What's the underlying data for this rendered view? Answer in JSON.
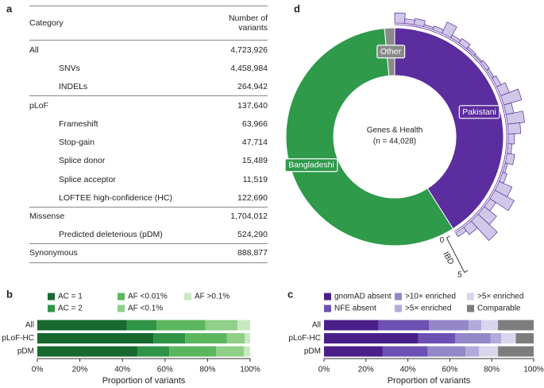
{
  "panel_labels": [
    "a",
    "b",
    "c",
    "d"
  ],
  "table": {
    "header": [
      "Category",
      "Number of variants"
    ],
    "rows": [
      [
        "All",
        "4,723,926"
      ],
      [
        "SNVs",
        "4,458,984"
      ],
      [
        "INDELs",
        "264,942"
      ],
      [
        "pLoF",
        "137,640"
      ],
      [
        "Frameshift",
        "63,966"
      ],
      [
        "Stop-gain",
        "47,714"
      ],
      [
        "Splice donor",
        "15,489"
      ],
      [
        "Splice acceptor",
        "11,519"
      ],
      [
        "LOFTEE high-confidence (HC)",
        "122,690"
      ],
      [
        "Missense",
        "1,704,012"
      ],
      [
        "Predicted deleterious (pDM)",
        "524,290"
      ],
      [
        "Synonymous",
        "888,877"
      ]
    ]
  },
  "chart_data": [
    {
      "type": "bar",
      "orientation": "horizontal",
      "stacked": true,
      "categories": [
        "All",
        "pLoF-HC",
        "pDM"
      ],
      "series": [
        {
          "name": "AC = 1",
          "color": "#17692f",
          "values": [
            42,
            54.5,
            47
          ]
        },
        {
          "name": "AC = 2",
          "color": "#2f9446",
          "values": [
            14,
            15,
            15
          ]
        },
        {
          "name": "AF <0.01%",
          "color": "#5cb65e",
          "values": [
            23,
            19.5,
            22
          ]
        },
        {
          "name": "AF <0.1%",
          "color": "#8fcf88",
          "values": [
            15,
            8.5,
            13
          ]
        },
        {
          "name": "AF >0.1%",
          "color": "#c9e9c1",
          "values": [
            6,
            2.5,
            3
          ]
        }
      ],
      "xlabel": "Proportion of variants",
      "xlim": [
        0,
        100
      ],
      "xticks": [
        {
          "value": 0,
          "label": "0%"
        },
        {
          "value": 20,
          "label": "20%"
        },
        {
          "value": 40,
          "label": "40%"
        },
        {
          "value": 60,
          "label": "60%"
        },
        {
          "value": 80,
          "label": "80%"
        },
        {
          "value": 100,
          "label": "100%"
        }
      ]
    },
    {
      "type": "bar",
      "orientation": "horizontal",
      "stacked": true,
      "categories": [
        "All",
        "pLoF-HC",
        "pDM"
      ],
      "series": [
        {
          "name": "gnomAD absent",
          "color": "#4a1f8a",
          "values": [
            26,
            45,
            28
          ]
        },
        {
          "name": "NFE absent",
          "color": "#6d50b3",
          "values": [
            24,
            17.5,
            21.5
          ]
        },
        {
          "name": ">10× enriched",
          "color": "#9387c8",
          "values": [
            19,
            17,
            18
          ]
        },
        {
          "name": ">5× enriched",
          "color": "#b3aadb",
          "values": [
            6,
            5,
            6.5
          ]
        },
        {
          "name": ">5× enriched",
          "color": "#d9d5ec",
          "values": [
            8,
            7,
            9
          ]
        },
        {
          "name": "Comparable",
          "color": "#7d7d7d",
          "values": [
            17,
            8.5,
            17
          ]
        }
      ],
      "xlabel": "Proportion of variants",
      "xlim": [
        0,
        100
      ],
      "xticks": [
        {
          "value": 0,
          "label": "0%"
        },
        {
          "value": 20,
          "label": "20%"
        },
        {
          "value": 40,
          "label": "40%"
        },
        {
          "value": 60,
          "label": "60%"
        },
        {
          "value": 80,
          "label": "80%"
        },
        {
          "value": 100,
          "label": "100%"
        }
      ]
    },
    {
      "type": "pie",
      "title": "Genes & Health",
      "subtitle": "(n = 44,028)",
      "categories": [
        "Pakistani",
        "Bangladeshi",
        "Other"
      ],
      "values": [
        41,
        57.5,
        1.5
      ],
      "colors": [
        "#5b2d9e",
        "#2e9a4a",
        "#8a8a8a"
      ],
      "bar_label": "IBD",
      "bar_color": "#cfc8e8",
      "bar_values": [
        1.3,
        0.6,
        0.8,
        0.3,
        0.5,
        1.6,
        0.4,
        0.7,
        0.3,
        0.2,
        0.4,
        0.3,
        0.6,
        1.2,
        2.4,
        1.0,
        2.2,
        1.6,
        0.8,
        0.5,
        1.0,
        0.3,
        0.6,
        1.8,
        2.8,
        0.9,
        2.0,
        3.4,
        1.2,
        0.6
      ],
      "bar_lim": [
        0,
        5
      ],
      "bar_ticks": [
        0,
        5
      ]
    }
  ]
}
